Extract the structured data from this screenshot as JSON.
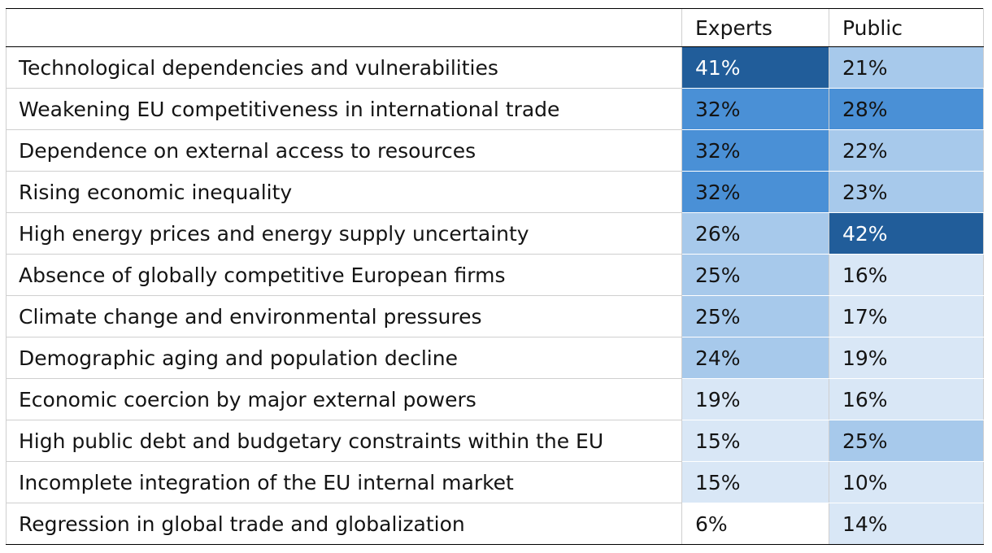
{
  "chart_data": {
    "type": "heatmap",
    "columns": [
      "Experts",
      "Public"
    ],
    "rows": [
      {
        "label": "Technological dependencies and vulnerabilities",
        "values": [
          41,
          21
        ]
      },
      {
        "label": "Weakening EU competitiveness in international trade",
        "values": [
          32,
          28
        ]
      },
      {
        "label": "Dependence on external access to resources",
        "values": [
          32,
          22
        ]
      },
      {
        "label": "Rising economic inequality",
        "values": [
          32,
          23
        ]
      },
      {
        "label": "High energy prices and energy supply uncertainty",
        "values": [
          26,
          42
        ]
      },
      {
        "label": "Absence of globally competitive European firms",
        "values": [
          25,
          16
        ]
      },
      {
        "label": "Climate change and environmental pressures",
        "values": [
          25,
          17
        ]
      },
      {
        "label": "Demographic aging and population decline",
        "values": [
          24,
          19
        ]
      },
      {
        "label": "Economic coercion by major external powers",
        "values": [
          19,
          16
        ]
      },
      {
        "label": "High public debt and budgetary constraints within the EU",
        "values": [
          15,
          25
        ]
      },
      {
        "label": "Incomplete integration of the EU internal market",
        "values": [
          15,
          10
        ]
      },
      {
        "label": "Regression in global trade and globalization",
        "values": [
          6,
          14
        ]
      }
    ],
    "value_suffix": "%",
    "colors": {
      "darkest": "#215d9a",
      "dark": "#4a90d6",
      "medium": "#a7c9eb",
      "light": "#d9e7f6",
      "text_on_dark": "#ffffff",
      "text_on_light": "#141414"
    }
  }
}
